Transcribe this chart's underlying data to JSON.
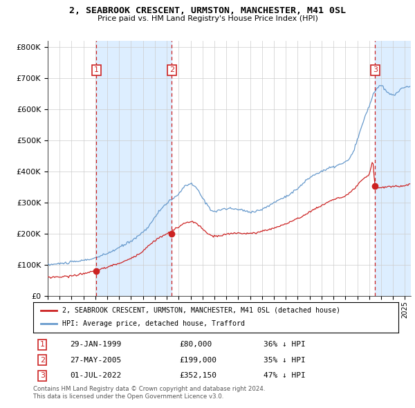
{
  "title": "2, SEABROOK CRESCENT, URMSTON, MANCHESTER, M41 0SL",
  "subtitle": "Price paid vs. HM Land Registry's House Price Index (HPI)",
  "legend_line1": "2, SEABROOK CRESCENT, URMSTON, MANCHESTER, M41 0SL (detached house)",
  "legend_line2": "HPI: Average price, detached house, Trafford",
  "footer1": "Contains HM Land Registry data © Crown copyright and database right 2024.",
  "footer2": "This data is licensed under the Open Government Licence v3.0.",
  "transactions": [
    {
      "num": 1,
      "date": "29-JAN-1999",
      "price": "£80,000",
      "hpi": "36% ↓ HPI",
      "year": 1999.08,
      "price_val": 80000
    },
    {
      "num": 2,
      "date": "27-MAY-2005",
      "price": "£199,000",
      "hpi": "35% ↓ HPI",
      "year": 2005.42,
      "price_val": 199000
    },
    {
      "num": 3,
      "date": "01-JUL-2022",
      "price": "£352,150",
      "hpi": "47% ↓ HPI",
      "year": 2022.5,
      "price_val": 352150
    }
  ],
  "shade_color": "#ddeeff",
  "hpi_color": "#6699cc",
  "price_color": "#cc2222",
  "vline_color": "#cc2222",
  "bg_color": "#ffffff",
  "grid_color": "#cccccc",
  "ylim": [
    0,
    820000
  ],
  "yticks": [
    0,
    100000,
    200000,
    300000,
    400000,
    500000,
    600000,
    700000,
    800000
  ],
  "xmin": 1995.0,
  "xmax": 2025.5
}
